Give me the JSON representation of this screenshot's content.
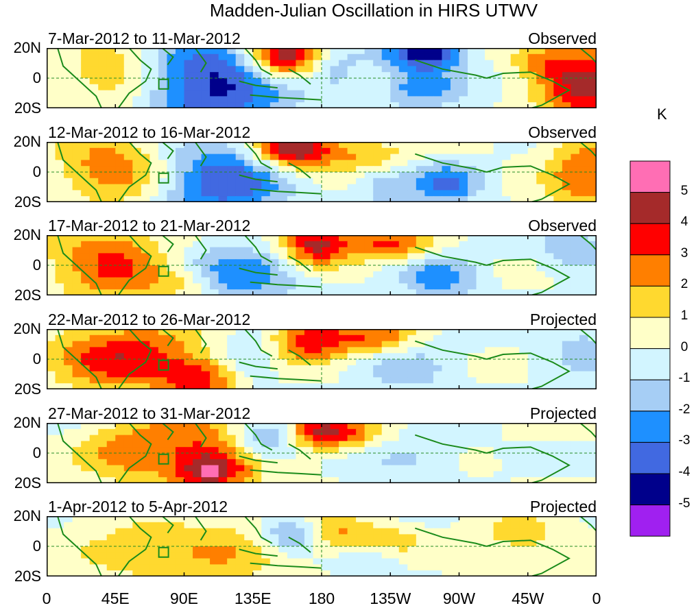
{
  "chart_data": {
    "type": "heatmap",
    "title": "Madden-Julian Oscillation in HIRS UTWV",
    "xlabel": "",
    "ylabel": "",
    "x_tick_labels": [
      "0",
      "45E",
      "90E",
      "135E",
      "180",
      "135W",
      "90W",
      "45W",
      "0"
    ],
    "y_tick_labels": [
      "20N",
      "0",
      "20S"
    ],
    "panels": [
      {
        "date_range": "7-Mar-2012 to 11-Mar-2012",
        "status": "Observed"
      },
      {
        "date_range": "12-Mar-2012 to 16-Mar-2012",
        "status": "Observed"
      },
      {
        "date_range": "17-Mar-2012 to 21-Mar-2012",
        "status": "Observed"
      },
      {
        "date_range": "22-Mar-2012 to 26-Mar-2012",
        "status": "Projected"
      },
      {
        "date_range": "27-Mar-2012 to 31-Mar-2012",
        "status": "Projected"
      },
      {
        "date_range": "1-Apr-2012 to 5-Apr-2012",
        "status": "Projected"
      }
    ],
    "colorbar": {
      "unit": "K",
      "labels": [
        "5",
        "4",
        "3",
        "2",
        "1",
        "0",
        "-1",
        "-2",
        "-3",
        "-4",
        "-5"
      ],
      "colors": [
        "#ff6eb4",
        "#a52a2a",
        "#ff0000",
        "#ff7f00",
        "#ffd92f",
        "#ffffc8",
        "#d2f5ff",
        "#a6cef5",
        "#1e90ff",
        "#4169e1",
        "#00008b",
        "#a020f0"
      ]
    }
  },
  "colors": {
    "coast": "#1a8a1a",
    "equator": "#228b22"
  }
}
